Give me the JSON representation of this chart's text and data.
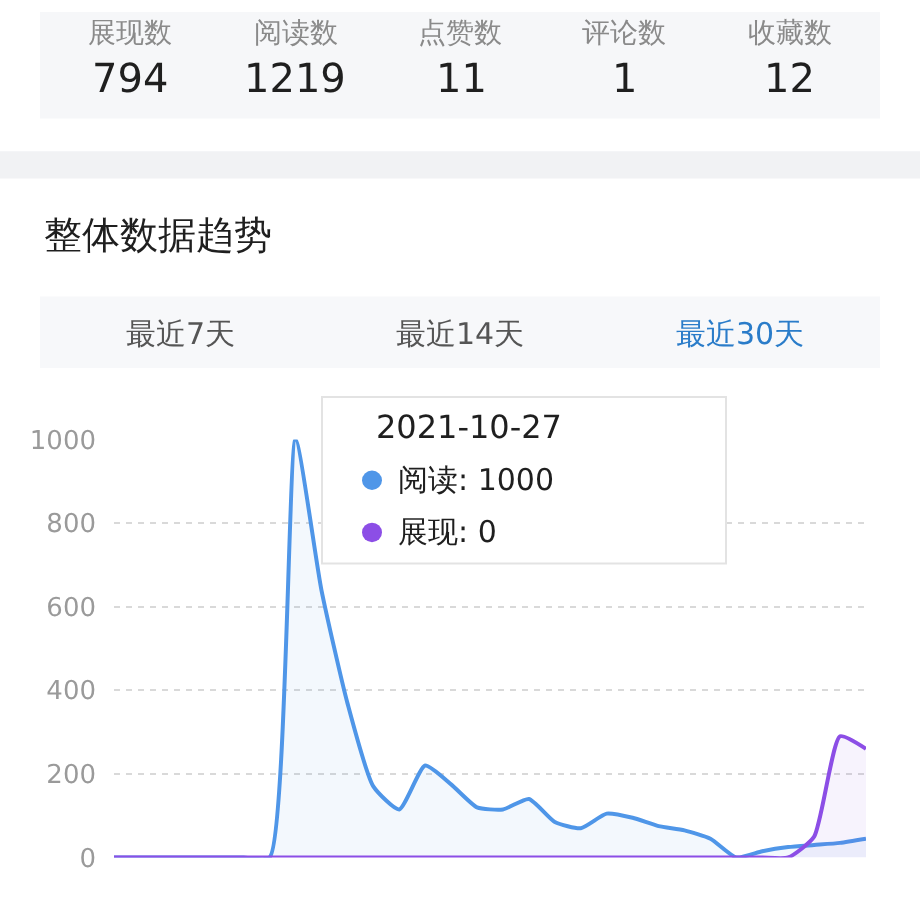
{
  "chart_data": [
    {
      "type": "other",
      "categories": [
        "展现数",
        "阅读数",
        "点赞数",
        "评论数",
        "收藏数"
      ],
      "values": [
        794,
        1219,
        11,
        1,
        12
      ],
      "data_labels": true
    },
    {
      "type": "area",
      "title": "整体数据趋势",
      "annotations": [
        "最近7天",
        "最近14天",
        "最近30天",
        "2021-10-27",
        "阅读: 1000",
        "展现: 0"
      ],
      "categories": [
        null,
        null,
        null,
        null,
        null,
        null,
        null,
        null,
        null,
        null,
        null,
        null,
        null,
        null,
        null,
        null,
        null,
        null,
        null,
        null,
        null,
        null,
        null,
        null,
        null,
        null,
        null,
        null,
        null,
        null
      ],
      "series": [
        {
          "color": "#4f96e8",
          "values": [
            0,
            0,
            0,
            0,
            0,
            0,
            0,
            1000,
            640,
            370,
            170,
            115,
            220,
            175,
            120,
            115,
            140,
            85,
            70,
            105,
            95,
            75,
            65,
            45,
            0,
            15,
            25,
            30,
            35,
            45
          ]
        },
        {
          "color": "#8c4ee6",
          "values": [
            0,
            0,
            0,
            0,
            0,
            0,
            0,
            0,
            0,
            0,
            0,
            0,
            0,
            0,
            0,
            0,
            0,
            0,
            0,
            0,
            0,
            0,
            0,
            0,
            0,
            0,
            0,
            50,
            290,
            260
          ]
        }
      ],
      "ylim": [
        0,
        1000
      ],
      "yticks": [
        0,
        200,
        400,
        600,
        800,
        1000
      ],
      "grid": "y",
      "tick_labels": "y"
    }
  ]
}
